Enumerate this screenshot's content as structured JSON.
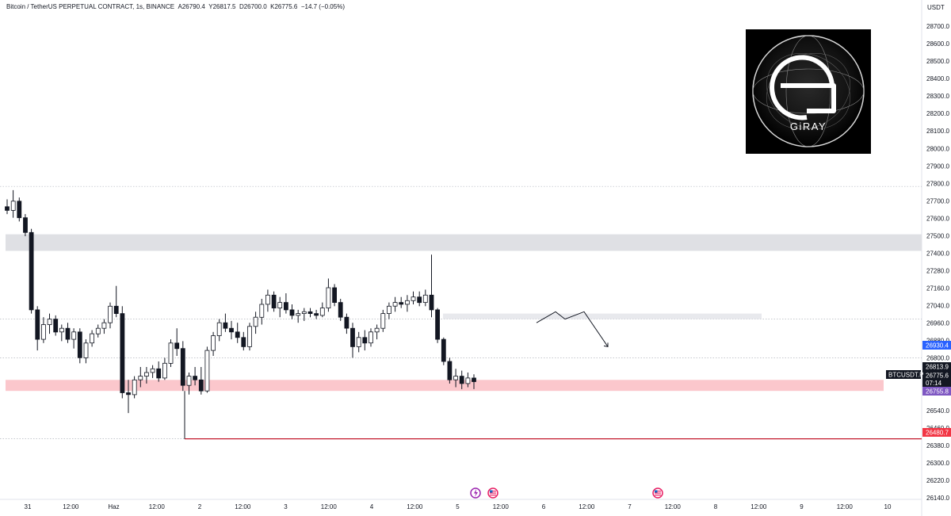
{
  "header": {
    "symbol": "Bitcoin / TetherUS PERPETUAL CONTRACT, 1s, BINANCE",
    "o": "A26790.4",
    "h": "Y26817.5",
    "l": "D26700.0",
    "c": "K26775.6",
    "change": "−14.7 (−0.05%)"
  },
  "logo": {
    "letter": "G",
    "word": "GiRAY"
  },
  "price_axis": {
    "currency": "USDT",
    "ticks": [
      "28700.0",
      "28600.0",
      "28500.0",
      "28400.0",
      "28300.0",
      "28200.0",
      "28100.0",
      "28000.0",
      "27900.0",
      "27800.0",
      "27700.0",
      "27600.0",
      "27500.0",
      "27400.0",
      "27280.0",
      "27160.0",
      "27040.0",
      "26960.0",
      "26880.0",
      "26800.0",
      "26700.0",
      "26620.0",
      "26540.0",
      "26460.0",
      "26380.0",
      "26300.0",
      "26220.0",
      "26140.0"
    ],
    "tags": {
      "blue": "26930.4",
      "dark": "26813.9",
      "last": "26775.6",
      "countdown": "07:14",
      "purple": "26755.8",
      "red": "26480.7"
    },
    "symbol_tag": "BTCUSDT.P"
  },
  "time_axis": {
    "labels": [
      "31",
      "12:00",
      "Haz",
      "12:00",
      "2",
      "12:00",
      "3",
      "12:00",
      "4",
      "12:00",
      "5",
      "12:00",
      "6",
      "12:00",
      "7",
      "12:00",
      "8",
      "12:00",
      "9",
      "12:00",
      "10"
    ]
  },
  "colors": {
    "up": "#131722",
    "down": "#131722",
    "zone_gray": "#dfe0e4",
    "zone_pink": "#fbc7cc",
    "red_line": "#c2182b",
    "blue_tag": "#2962ff",
    "purple_tag": "#7e57c2",
    "red_tag": "#f23645"
  },
  "chart_data": {
    "type": "candlestick",
    "symbol": "BTCUSDT.P",
    "interval": "1s",
    "ylim": [
      26120,
      28760
    ],
    "ohlc": [
      [
        27720,
        27760,
        27680,
        27700
      ],
      [
        27700,
        27810,
        27660,
        27750
      ],
      [
        27750,
        27770,
        27640,
        27660
      ],
      [
        27660,
        27680,
        27560,
        27580
      ],
      [
        27580,
        27600,
        27140,
        27160
      ],
      [
        27160,
        27180,
        26940,
        27000
      ],
      [
        27000,
        27120,
        26980,
        27080
      ],
      [
        27080,
        27140,
        27030,
        27110
      ],
      [
        27110,
        27130,
        27020,
        27040
      ],
      [
        27040,
        27080,
        26990,
        27060
      ],
      [
        27060,
        27090,
        26980,
        27000
      ],
      [
        27000,
        27060,
        26950,
        27040
      ],
      [
        27040,
        27060,
        26870,
        26900
      ],
      [
        26900,
        27000,
        26870,
        26980
      ],
      [
        26980,
        27050,
        26960,
        27030
      ],
      [
        27030,
        27080,
        27010,
        27060
      ],
      [
        27060,
        27110,
        27030,
        27090
      ],
      [
        27090,
        27200,
        27060,
        27180
      ],
      [
        27180,
        27290,
        27120,
        27140
      ],
      [
        27140,
        27180,
        26680,
        26710
      ],
      [
        26710,
        26780,
        26600,
        26700
      ],
      [
        26700,
        26800,
        26680,
        26780
      ],
      [
        26780,
        26850,
        26740,
        26800
      ],
      [
        26800,
        26850,
        26760,
        26820
      ],
      [
        26820,
        26860,
        26790,
        26840
      ],
      [
        26840,
        26880,
        26770,
        26790
      ],
      [
        26790,
        26900,
        26780,
        26870
      ],
      [
        26870,
        27000,
        26850,
        26980
      ],
      [
        26980,
        27060,
        26910,
        26950
      ],
      [
        26950,
        26990,
        26720,
        26750
      ],
      [
        26750,
        26820,
        26700,
        26800
      ],
      [
        26800,
        26850,
        26750,
        26780
      ],
      [
        26780,
        26850,
        26700,
        26720
      ],
      [
        26720,
        26960,
        26710,
        26940
      ],
      [
        26940,
        27040,
        26910,
        27020
      ],
      [
        27020,
        27110,
        26990,
        27090
      ],
      [
        27090,
        27140,
        27040,
        27060
      ],
      [
        27060,
        27100,
        27000,
        27040
      ],
      [
        27040,
        27090,
        26980,
        27010
      ],
      [
        27010,
        27040,
        26940,
        26960
      ],
      [
        26960,
        27090,
        26940,
        27070
      ],
      [
        27070,
        27150,
        27030,
        27120
      ],
      [
        27120,
        27220,
        27080,
        27190
      ],
      [
        27190,
        27270,
        27150,
        27240
      ],
      [
        27240,
        27260,
        27150,
        27170
      ],
      [
        27170,
        27230,
        27120,
        27200
      ],
      [
        27200,
        27250,
        27140,
        27160
      ],
      [
        27160,
        27190,
        27110,
        27130
      ],
      [
        27130,
        27160,
        27090,
        27140
      ],
      [
        27140,
        27170,
        27100,
        27150
      ],
      [
        27150,
        27170,
        27120,
        27140
      ],
      [
        27140,
        27160,
        27110,
        27130
      ],
      [
        27130,
        27200,
        27120,
        27170
      ],
      [
        27170,
        27330,
        27150,
        27280
      ],
      [
        27280,
        27300,
        27180,
        27200
      ],
      [
        27200,
        27220,
        27100,
        27120
      ],
      [
        27120,
        27140,
        27030,
        27060
      ],
      [
        27060,
        27090,
        26900,
        26960
      ],
      [
        26960,
        27040,
        26930,
        27010
      ],
      [
        27010,
        27050,
        26940,
        26980
      ],
      [
        26980,
        27060,
        26960,
        27040
      ],
      [
        27040,
        27080,
        27000,
        27060
      ],
      [
        27060,
        27160,
        27040,
        27140
      ],
      [
        27140,
        27200,
        27110,
        27180
      ],
      [
        27180,
        27230,
        27150,
        27200
      ],
      [
        27200,
        27230,
        27170,
        27190
      ],
      [
        27190,
        27240,
        27150,
        27210
      ],
      [
        27210,
        27260,
        27190,
        27230
      ],
      [
        27230,
        27260,
        27180,
        27200
      ],
      [
        27200,
        27270,
        27180,
        27240
      ],
      [
        27240,
        27460,
        27120,
        27160
      ],
      [
        27160,
        27170,
        26980,
        27000
      ],
      [
        27000,
        27010,
        26860,
        26880
      ],
      [
        26880,
        26900,
        26760,
        26780
      ],
      [
        26780,
        26840,
        26740,
        26800
      ],
      [
        26800,
        26830,
        26730,
        26760
      ],
      [
        26760,
        26820,
        26740,
        26790
      ],
      [
        26790,
        26810,
        26730,
        26770
      ]
    ],
    "zones": [
      {
        "from": 27480,
        "to": 27570,
        "color": "gray"
      },
      {
        "from": 27110,
        "to": 27140,
        "color": "light-gray"
      },
      {
        "from": 26720,
        "to": 26780,
        "color": "pink"
      }
    ],
    "horizontal_lines": [
      27830,
      27110,
      26900,
      26460
    ],
    "support_line": 26460,
    "projection_path": [
      [
        0,
        27090
      ],
      [
        1,
        27150
      ],
      [
        2,
        27110
      ],
      [
        3,
        27150
      ],
      [
        4,
        26960
      ]
    ]
  }
}
